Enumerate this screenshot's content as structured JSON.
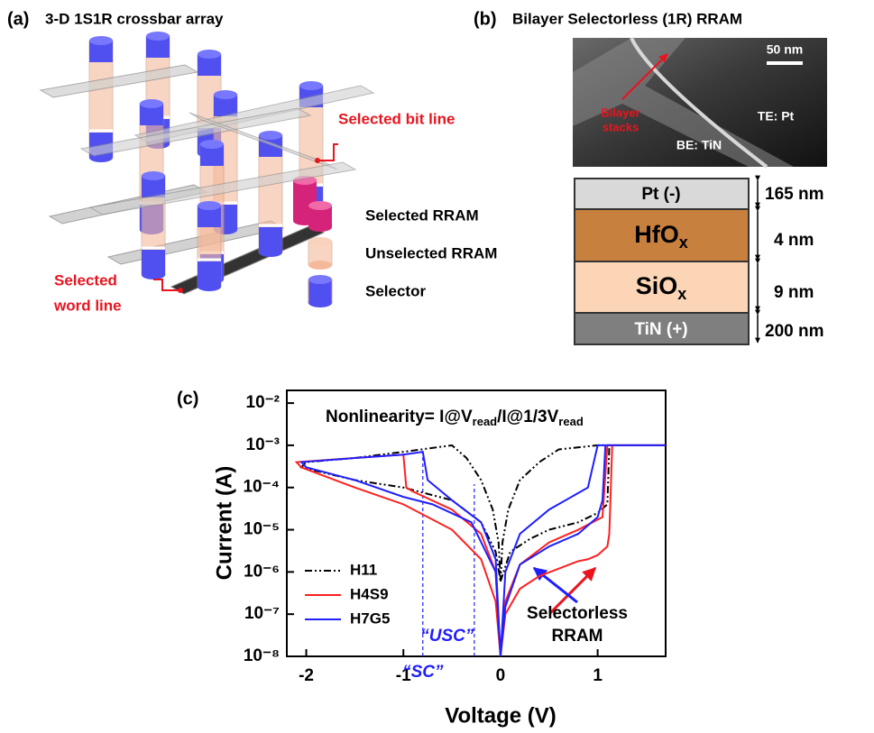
{
  "panel_a": {
    "label": "(a)",
    "title": "3-D 1S1R crossbar array",
    "bit_line": "Selected bit line",
    "word_line": [
      "Selected",
      "word line"
    ],
    "legend": [
      "Selected RRAM",
      "Unselected RRAM",
      "Selector"
    ]
  },
  "panel_b": {
    "label": "(b)",
    "title": "Bilayer Selectorless (1R) RRAM",
    "scale_bar": "50 nm",
    "stack_label": [
      "Bilayer",
      "stacks"
    ],
    "top_electrode": "TE: Pt",
    "bottom_electrode": "BE: TiN",
    "layers": [
      {
        "name": "Pt (-)",
        "thickness": "165 nm"
      },
      {
        "name": "HfO",
        "sub": "x",
        "thickness": "4 nm"
      },
      {
        "name": "SiO",
        "sub": "x",
        "thickness": "9 nm"
      },
      {
        "name": "TiN (+)",
        "thickness": "200 nm"
      }
    ]
  },
  "chart_data": {
    "type": "line",
    "panel_label": "(c)",
    "annotation": [
      "Nonlinearity= I@V",
      "read",
      "/I@1/3V",
      "read"
    ],
    "x_label": "Voltage (V)",
    "y_label": "Current (A)",
    "xlim": [
      -2.2,
      1.7
    ],
    "xticks": [
      -2,
      -1,
      0,
      1
    ],
    "ylim": [
      1e-08,
      0.02
    ],
    "log_y": true,
    "yticks": [
      {
        "value": 1e-08,
        "label": "10⁻⁸"
      },
      {
        "value": 1e-07,
        "label": "10⁻⁷"
      },
      {
        "value": 1e-06,
        "label": "10⁻⁶"
      },
      {
        "value": 1e-05,
        "label": "10⁻⁵"
      },
      {
        "value": 0.0001,
        "label": "10⁻⁴"
      },
      {
        "value": 0.001,
        "label": "10⁻³"
      },
      {
        "value": 0.01,
        "label": "10⁻²"
      }
    ],
    "legend_position": "lower left",
    "series": [
      {
        "name": "H11",
        "color": "#000000",
        "line_style": "dashdot",
        "x": [
          0,
          0.1,
          0.3,
          0.5,
          0.8,
          1.0,
          1.1,
          1.12,
          1.7,
          1.0,
          0.6,
          0.4,
          0.2,
          0.08,
          0.02,
          0,
          -0.02,
          -0.08,
          -0.2,
          -0.35,
          -0.5,
          -1.0,
          -1.5,
          -2.0,
          -2.05,
          -1.5,
          -1.0,
          -0.5,
          -0.2,
          -0.05,
          0
        ],
        "values": [
          6e-07,
          3e-06,
          6e-06,
          1e-05,
          1.5e-05,
          2.5e-05,
          4e-05,
          0.001,
          0.001,
          0.001,
          0.0008,
          0.0004,
          0.00015,
          3e-05,
          5e-06,
          6e-07,
          5e-06,
          3e-05,
          0.00015,
          0.0005,
          0.001,
          0.0007,
          0.0005,
          0.0004,
          0.0003,
          0.00015,
          0.0001,
          5e-05,
          1.5e-05,
          3e-06,
          6e-07
        ]
      },
      {
        "name": "H4S9",
        "color": "#ff2020",
        "line_style": "solid",
        "x": [
          0,
          0.05,
          0.2,
          0.4,
          0.6,
          0.8,
          0.9,
          1.0,
          1.1,
          1.12,
          1.15,
          1.7,
          1.1,
          1.05,
          0.8,
          0.5,
          0.2,
          0.05,
          0,
          -0.05,
          -0.2,
          -0.5,
          -1.0,
          -1.5,
          -2.05,
          -2.1,
          -1.5,
          -1.0,
          -0.97,
          -0.9,
          -0.5,
          -0.2,
          -0.05,
          0
        ],
        "values": [
          1e-08,
          1e-07,
          4e-07,
          8e-07,
          1.2e-06,
          1.8e-06,
          2e-06,
          2.5e-06,
          4e-06,
          8e-06,
          0.001,
          0.001,
          0.001,
          2e-05,
          1e-05,
          5e-06,
          1.5e-06,
          2e-07,
          1e-08,
          2e-07,
          2e-06,
          1e-05,
          4e-05,
          0.0001,
          0.0003,
          0.0004,
          0.0005,
          0.0006,
          0.0001,
          8e-05,
          3e-05,
          8e-06,
          1e-06,
          1e-08
        ]
      },
      {
        "name": "H7G5",
        "color": "#1f1fff",
        "line_style": "solid",
        "x": [
          0,
          0.05,
          0.2,
          0.5,
          0.8,
          1.0,
          1.05,
          1.08,
          1.7,
          1.0,
          0.9,
          0.5,
          0.2,
          0.05,
          0,
          -0.05,
          -0.3,
          -0.7,
          -1.0,
          -1.5,
          -2.0,
          -2.05,
          -1.5,
          -1.0,
          -0.8,
          -0.75,
          -0.5,
          -0.2,
          -0.05,
          0
        ],
        "values": [
          1e-08,
          1.5e-07,
          1.5e-06,
          4e-06,
          8e-06,
          2e-05,
          5e-05,
          0.001,
          0.001,
          0.001,
          0.0001,
          3e-05,
          8e-06,
          1e-06,
          1e-08,
          1e-06,
          1.5e-05,
          4e-05,
          6e-05,
          0.00015,
          0.0003,
          0.0004,
          0.0005,
          0.0006,
          0.0007,
          0.00015,
          5e-05,
          1.5e-05,
          2e-06,
          1e-08
        ]
      }
    ],
    "read_lines": [
      {
        "x": -0.8,
        "y": 0.0007,
        "label": "“SC”"
      },
      {
        "x": -0.27,
        "y": 0.00012,
        "label": "“USC”"
      }
    ],
    "callout": [
      "Selectorless",
      "RRAM"
    ]
  }
}
